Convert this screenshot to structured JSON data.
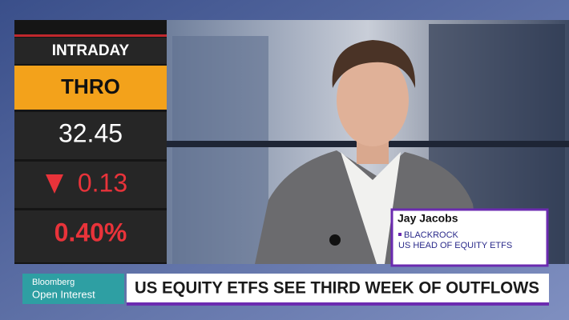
{
  "ticker": {
    "label": "INTRADAY",
    "symbol": "THRO",
    "price": "32.45",
    "change": "0.13",
    "percent": "0.40%"
  },
  "guest": {
    "name": "Jay Jacobs",
    "organization": "BLACKROCK",
    "role": "US HEAD OF EQUITY ETFS"
  },
  "show": {
    "network": "Bloomberg",
    "program": "Open Interest"
  },
  "headline": "US EQUITY ETFS SEE THIRD WEEK OF OUTFLOWS"
}
